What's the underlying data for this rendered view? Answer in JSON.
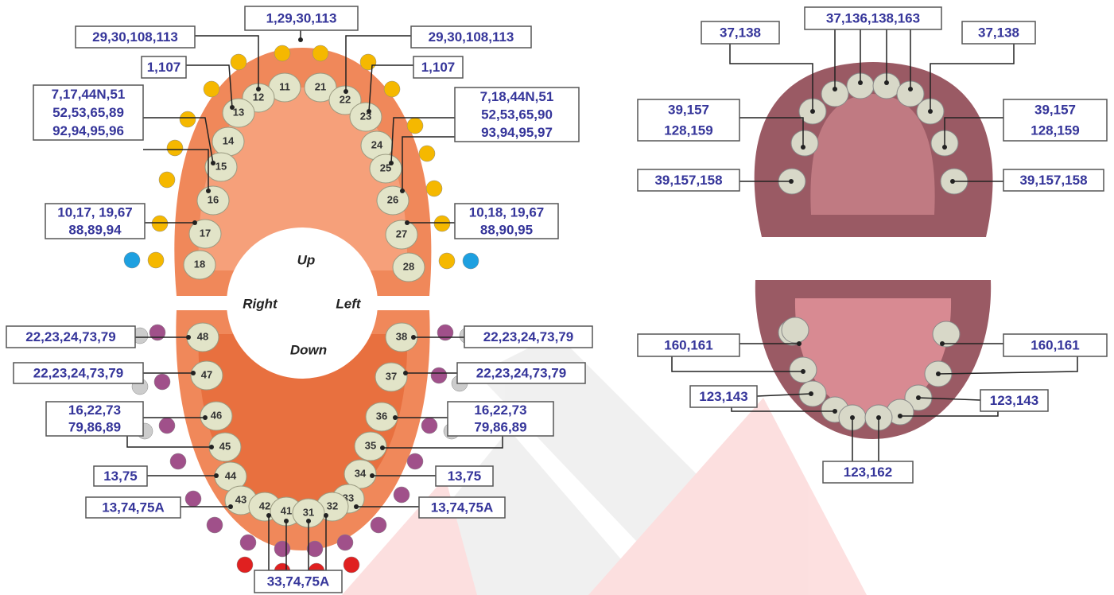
{
  "directions": {
    "up": "Up",
    "down": "Down",
    "right": "Right",
    "left": "Left"
  },
  "teeth": [
    "11",
    "21",
    "12",
    "22",
    "13",
    "23",
    "14",
    "24",
    "15",
    "25",
    "16",
    "26",
    "17",
    "27",
    "18",
    "28",
    "48",
    "38",
    "47",
    "37",
    "46",
    "36",
    "45",
    "35",
    "44",
    "34",
    "43",
    "33",
    "42",
    "32",
    "41",
    "31"
  ],
  "callouts": [
    {
      "lines": [
        "1,29,30,113"
      ]
    },
    {
      "lines": [
        "29,30,108,113"
      ]
    },
    {
      "lines": [
        "29,30,108,113"
      ]
    },
    {
      "lines": [
        "1,107"
      ]
    },
    {
      "lines": [
        "1,107"
      ]
    },
    {
      "lines": [
        "7,17,44N,51",
        "52,53,65,89",
        "92,94,95,96"
      ]
    },
    {
      "lines": [
        "7,18,44N,51",
        "52,53,65,90",
        "93,94,95,97"
      ]
    },
    {
      "lines": [
        "10,17, 19,67",
        "88,89,94"
      ]
    },
    {
      "lines": [
        "10,18, 19,67",
        "88,90,95"
      ]
    },
    {
      "lines": [
        "22,23,24,73,79"
      ]
    },
    {
      "lines": [
        "22,23,24,73,79"
      ]
    },
    {
      "lines": [
        "22,23,24,73,79"
      ]
    },
    {
      "lines": [
        "22,23,24,73,79"
      ]
    },
    {
      "lines": [
        "16,22,73",
        "79,86,89"
      ]
    },
    {
      "lines": [
        "16,22,73",
        "79,86,89"
      ]
    },
    {
      "lines": [
        "13,75"
      ]
    },
    {
      "lines": [
        "13,75"
      ]
    },
    {
      "lines": [
        "13,74,75A"
      ]
    },
    {
      "lines": [
        "13,74,75A"
      ]
    },
    {
      "lines": [
        "33,74,75A"
      ]
    },
    {
      "lines": [
        "37,138"
      ]
    },
    {
      "lines": [
        "37,136,138,163"
      ]
    },
    {
      "lines": [
        "37,138"
      ]
    },
    {
      "lines": [
        "39,157",
        "128,159"
      ]
    },
    {
      "lines": [
        "39,157",
        "128,159"
      ]
    },
    {
      "lines": [
        "39,157,158"
      ]
    },
    {
      "lines": [
        "39,157,158"
      ]
    },
    {
      "lines": [
        "160,161"
      ]
    },
    {
      "lines": [
        "160,161"
      ]
    },
    {
      "lines": [
        "123,143"
      ]
    },
    {
      "lines": [
        "123,143"
      ]
    },
    {
      "lines": [
        "123,162"
      ]
    }
  ]
}
